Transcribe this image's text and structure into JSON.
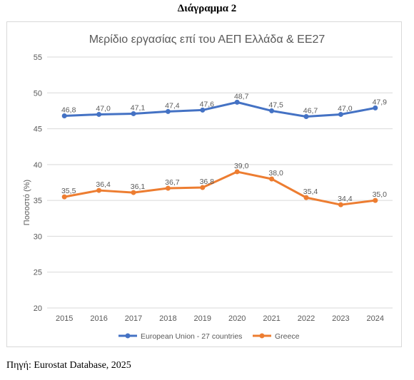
{
  "heading": "Διάγραμμα 2",
  "source": "Πηγή: Eurostat Database, 2025",
  "colors": {
    "eu": "#4472c4",
    "greece": "#ed7d31",
    "grid": "#d9d9d9",
    "text": "#595959"
  },
  "chart_data": {
    "type": "line",
    "title": "Μερίδιο εργασίας επί του ΑΕΠ Ελλάδα & ΕΕ27",
    "xlabel": "",
    "ylabel": "Ποσοστό (%)",
    "ylim": [
      20,
      55
    ],
    "yticks": [
      "20",
      "25",
      "30",
      "35",
      "40",
      "45",
      "50",
      "55"
    ],
    "grid": true,
    "legend": "bottom",
    "x": [
      "2015",
      "2016",
      "2017",
      "2018",
      "2019",
      "2020",
      "2021",
      "2022",
      "2023",
      "2024"
    ],
    "series": [
      {
        "name": "European Union - 27 countries",
        "values": [
          46.8,
          47.0,
          47.1,
          47.4,
          47.6,
          48.7,
          47.5,
          46.7,
          47.0,
          47.9
        ],
        "labels": [
          "46,8",
          "47,0",
          "47,1",
          "47,4",
          "47,6",
          "48,7",
          "47,5",
          "46,7",
          "47,0",
          "47,9"
        ]
      },
      {
        "name": "Greece",
        "values": [
          35.5,
          36.4,
          36.1,
          36.7,
          36.8,
          39.0,
          38.0,
          35.4,
          34.4,
          35.0
        ],
        "labels": [
          "35,5",
          "36,4",
          "36,1",
          "36,7",
          "36,8",
          "39,0",
          "38,0",
          "35,4",
          "34,4",
          "35,0"
        ]
      }
    ]
  }
}
